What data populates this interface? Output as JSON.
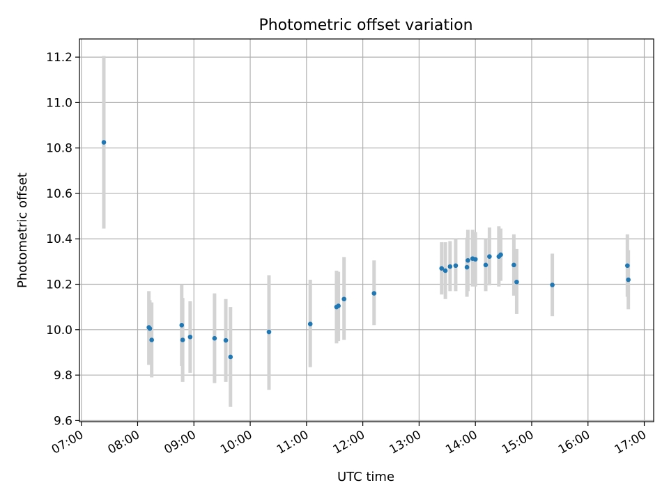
{
  "chart_data": {
    "type": "scatter",
    "title": "Photometric offset variation",
    "xlabel": "UTC time",
    "ylabel": "Photometric offset",
    "xlim": [
      "06:58",
      "17:10"
    ],
    "ylim": [
      9.595,
      11.28
    ],
    "x_ticks": [
      "07:00",
      "08:00",
      "09:00",
      "10:00",
      "11:00",
      "12:00",
      "13:00",
      "14:00",
      "15:00",
      "16:00",
      "17:00"
    ],
    "y_ticks": [
      9.6,
      9.8,
      10.0,
      10.2,
      10.4,
      10.6,
      10.8,
      11.0,
      11.2
    ],
    "grid": true,
    "series": [
      {
        "color": "#1f77b4",
        "error_color": "#d3d3d3",
        "points": [
          {
            "x": "07:24",
            "y": 10.825,
            "ylow": 10.445,
            "yhigh": 11.205
          },
          {
            "x": "08:12",
            "y": 10.01,
            "ylow": 9.845,
            "yhigh": 10.17
          },
          {
            "x": "08:13",
            "y": 10.005,
            "ylow": 9.88,
            "yhigh": 10.13
          },
          {
            "x": "08:15",
            "y": 9.955,
            "ylow": 9.79,
            "yhigh": 10.12
          },
          {
            "x": "08:47",
            "y": 10.02,
            "ylow": 9.84,
            "yhigh": 10.2
          },
          {
            "x": "08:48",
            "y": 9.955,
            "ylow": 9.77,
            "yhigh": 10.14
          },
          {
            "x": "08:56",
            "y": 9.968,
            "ylow": 9.81,
            "yhigh": 10.125
          },
          {
            "x": "09:22",
            "y": 9.962,
            "ylow": 9.765,
            "yhigh": 10.16
          },
          {
            "x": "09:34",
            "y": 9.953,
            "ylow": 9.77,
            "yhigh": 10.135
          },
          {
            "x": "09:39",
            "y": 9.88,
            "ylow": 9.66,
            "yhigh": 10.1
          },
          {
            "x": "10:20",
            "y": 9.99,
            "ylow": 9.735,
            "yhigh": 10.24
          },
          {
            "x": "11:04",
            "y": 10.025,
            "ylow": 9.835,
            "yhigh": 10.22
          },
          {
            "x": "11:32",
            "y": 10.1,
            "ylow": 9.94,
            "yhigh": 10.26
          },
          {
            "x": "11:34",
            "y": 10.105,
            "ylow": 9.95,
            "yhigh": 10.255
          },
          {
            "x": "11:40",
            "y": 10.135,
            "ylow": 9.955,
            "yhigh": 10.32
          },
          {
            "x": "12:12",
            "y": 10.16,
            "ylow": 10.02,
            "yhigh": 10.305
          },
          {
            "x": "13:24",
            "y": 10.27,
            "ylow": 10.155,
            "yhigh": 10.385
          },
          {
            "x": "13:28",
            "y": 10.26,
            "ylow": 10.135,
            "yhigh": 10.385
          },
          {
            "x": "13:33",
            "y": 10.278,
            "ylow": 10.17,
            "yhigh": 10.39
          },
          {
            "x": "13:39",
            "y": 10.282,
            "ylow": 10.17,
            "yhigh": 10.4
          },
          {
            "x": "13:51",
            "y": 10.275,
            "ylow": 10.145,
            "yhigh": 10.405
          },
          {
            "x": "13:52",
            "y": 10.305,
            "ylow": 10.17,
            "yhigh": 10.44
          },
          {
            "x": "13:57",
            "y": 10.313,
            "ylow": 10.19,
            "yhigh": 10.44
          },
          {
            "x": "14:00",
            "y": 10.31,
            "ylow": 10.19,
            "yhigh": 10.43
          },
          {
            "x": "14:11",
            "y": 10.285,
            "ylow": 10.17,
            "yhigh": 10.4
          },
          {
            "x": "14:15",
            "y": 10.322,
            "ylow": 10.195,
            "yhigh": 10.45
          },
          {
            "x": "14:25",
            "y": 10.322,
            "ylow": 10.19,
            "yhigh": 10.455
          },
          {
            "x": "14:27",
            "y": 10.33,
            "ylow": 10.215,
            "yhigh": 10.445
          },
          {
            "x": "14:41",
            "y": 10.285,
            "ylow": 10.15,
            "yhigh": 10.42
          },
          {
            "x": "14:44",
            "y": 10.21,
            "ylow": 10.07,
            "yhigh": 10.355
          },
          {
            "x": "15:22",
            "y": 10.197,
            "ylow": 10.06,
            "yhigh": 10.335
          },
          {
            "x": "16:42",
            "y": 10.282,
            "ylow": 10.145,
            "yhigh": 10.42
          },
          {
            "x": "16:43",
            "y": 10.22,
            "ylow": 10.09,
            "yhigh": 10.35
          }
        ]
      }
    ]
  }
}
